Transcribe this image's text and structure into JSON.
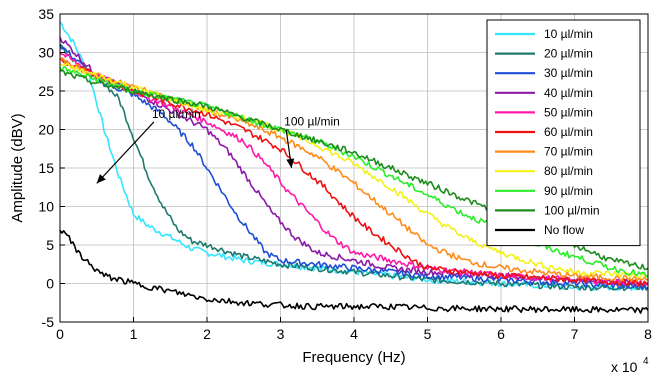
{
  "chart_data": {
    "type": "line",
    "title": "",
    "xlabel": "Frequency (Hz)",
    "ylabel": "Amplitude (dBV)",
    "x_multiplier_label": "x 10",
    "x_multiplier_exponent": "4",
    "xlim": [
      0,
      8
    ],
    "ylim": [
      -5,
      35
    ],
    "x_ticks": [
      "0",
      "1",
      "2",
      "3",
      "4",
      "5",
      "6",
      "7",
      "8"
    ],
    "y_ticks": [
      "-5",
      "0",
      "5",
      "10",
      "15",
      "20",
      "25",
      "30",
      "35"
    ],
    "grid": true,
    "legend_position": "top-right",
    "annotations": [
      {
        "text": "10 µl/min",
        "x": 1.25,
        "y": 21.5,
        "arrow_to": [
          0.5,
          13
        ]
      },
      {
        "text": "100 µl/min",
        "x": 3.05,
        "y": 20.5,
        "arrow_to": [
          3.15,
          15
        ]
      }
    ],
    "series": [
      {
        "name": "10 µl/min",
        "color": "#33e6ff",
        "x": [
          0,
          0.2,
          0.4,
          0.6,
          0.8,
          1.0,
          1.2,
          1.4,
          1.6,
          1.8,
          2.0,
          2.5,
          3.0,
          3.5,
          4.0,
          4.5,
          5.0,
          6.0,
          7.0,
          8.0
        ],
        "y": [
          34,
          31,
          27,
          20,
          14,
          9,
          7.5,
          6.5,
          5.5,
          4.5,
          4,
          3,
          2.5,
          2,
          1.5,
          1,
          0.5,
          0,
          -0.5,
          -0.5
        ]
      },
      {
        "name": "20 µl/min",
        "color": "#1f7a6e",
        "x": [
          0,
          0.3,
          0.6,
          0.8,
          1.0,
          1.2,
          1.4,
          1.6,
          1.8,
          2.0,
          2.5,
          3.0,
          3.5,
          4.0,
          4.5,
          5.0,
          6.0,
          7.0,
          8.0
        ],
        "y": [
          31,
          28,
          26,
          24,
          19,
          14,
          10,
          7,
          5.5,
          5,
          3.5,
          2.5,
          2,
          1.5,
          1,
          0.5,
          0,
          -0.5,
          -0.5
        ]
      },
      {
        "name": "30 µl/min",
        "color": "#1f4fd6",
        "x": [
          0,
          0.5,
          1.0,
          1.4,
          1.6,
          1.8,
          2.0,
          2.2,
          2.4,
          2.6,
          2.8,
          3.0,
          3.5,
          4.0,
          4.5,
          5.0,
          6.0,
          7.0,
          8.0
        ],
        "y": [
          31,
          26.5,
          24.5,
          22,
          20,
          18,
          15,
          12,
          9,
          6.5,
          4,
          3,
          2.5,
          2,
          1.5,
          1,
          0.5,
          0,
          -0.5
        ]
      },
      {
        "name": "40 µl/min",
        "color": "#8a1aa8",
        "x": [
          0,
          0.5,
          1.0,
          1.5,
          2.0,
          2.3,
          2.6,
          2.9,
          3.2,
          3.5,
          4.0,
          4.5,
          5.0,
          6.0,
          7.0,
          8.0
        ],
        "y": [
          32,
          27,
          25,
          22.5,
          20,
          17,
          13,
          9,
          6,
          4,
          3,
          2,
          1.5,
          1,
          0.5,
          0
        ]
      },
      {
        "name": "50 µl/min",
        "color": "#ff1aa8",
        "x": [
          0,
          0.5,
          1.0,
          1.5,
          2.0,
          2.5,
          2.8,
          3.1,
          3.4,
          3.7,
          4.0,
          4.5,
          5.0,
          6.0,
          7.0,
          8.0
        ],
        "y": [
          30,
          27,
          25,
          23,
          21,
          18.5,
          15.5,
          12,
          9,
          6,
          4,
          3,
          2,
          1,
          0.5,
          0
        ]
      },
      {
        "name": "60 µl/min",
        "color": "#ee1111",
        "x": [
          0,
          0.5,
          1.0,
          1.5,
          2.0,
          2.5,
          3.0,
          3.3,
          3.6,
          3.9,
          4.2,
          4.5,
          4.8,
          5.0,
          6.0,
          7.0,
          8.0
        ],
        "y": [
          29,
          27,
          25,
          23.5,
          22,
          20,
          17.5,
          15,
          12.5,
          9.5,
          7,
          5,
          3,
          2,
          1,
          0.5,
          0
        ]
      },
      {
        "name": "70 µl/min",
        "color": "#ff8c1a",
        "x": [
          0,
          0.5,
          1.0,
          1.5,
          2.0,
          2.5,
          3.0,
          3.5,
          4.0,
          4.5,
          5.0,
          5.5,
          6.0,
          7.0,
          8.0
        ],
        "y": [
          29,
          27,
          25.5,
          24,
          22.5,
          21,
          19,
          16.5,
          13,
          9,
          5,
          3,
          2,
          1,
          0.5
        ]
      },
      {
        "name": "80 µl/min",
        "color": "#f2f21a",
        "x": [
          0,
          0.5,
          1.0,
          1.5,
          2.0,
          2.5,
          3.0,
          3.5,
          4.0,
          4.5,
          5.0,
          5.5,
          6.0,
          6.5,
          7.0,
          8.0
        ],
        "y": [
          28.5,
          27,
          25.5,
          24,
          22.5,
          21.5,
          20,
          18,
          15.5,
          12.5,
          9,
          6,
          4,
          2.5,
          1.5,
          1
        ]
      },
      {
        "name": "90 µl/min",
        "color": "#2aee2a",
        "x": [
          0,
          0.5,
          1.0,
          1.5,
          2.0,
          2.5,
          3.0,
          3.5,
          4.0,
          4.5,
          5.0,
          5.5,
          6.0,
          6.5,
          7.0,
          7.5,
          8.0
        ],
        "y": [
          28,
          26.5,
          25,
          24,
          23,
          21.5,
          20,
          18.5,
          16.5,
          14,
          11.5,
          9,
          7,
          5,
          3.5,
          2,
          1
        ]
      },
      {
        "name": "100 µl/min",
        "color": "#1e8c1e",
        "x": [
          0,
          0.5,
          1.0,
          1.5,
          2.0,
          2.5,
          3.0,
          3.5,
          4.0,
          4.5,
          5.0,
          5.5,
          6.0,
          6.5,
          7.0,
          7.5,
          8.0
        ],
        "y": [
          27.5,
          26,
          25,
          24,
          23,
          21.5,
          20,
          18.5,
          17,
          15,
          13,
          11,
          9,
          7,
          5,
          3,
          2
        ]
      },
      {
        "name": "No flow",
        "color": "#000000",
        "x": [
          0,
          0.1,
          0.2,
          0.4,
          0.6,
          0.8,
          1.0,
          1.5,
          2.0,
          2.5,
          3.0,
          3.5,
          4.0,
          4.5,
          5.0,
          6.0,
          7.0,
          8.0
        ],
        "y": [
          7,
          6.5,
          4.5,
          2.5,
          1,
          0.5,
          0,
          -1,
          -2,
          -2.5,
          -2.8,
          -3,
          -3,
          -3,
          -3.2,
          -3.3,
          -3.4,
          -3.5
        ]
      }
    ]
  }
}
